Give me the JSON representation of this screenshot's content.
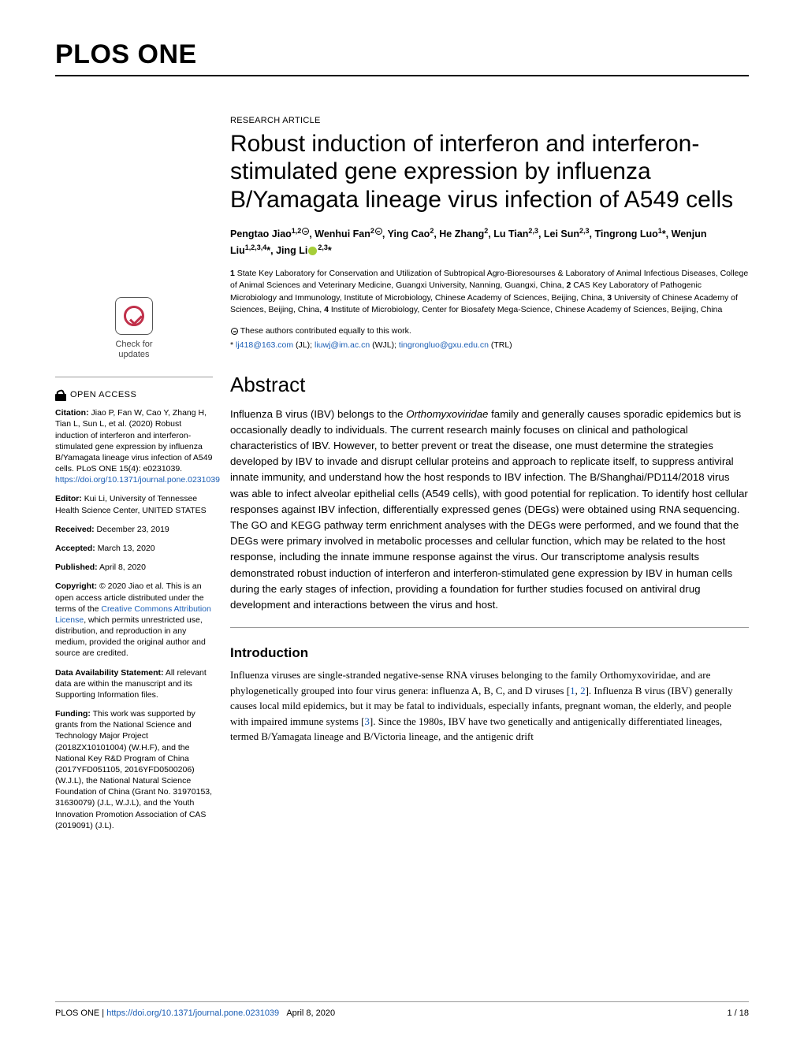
{
  "journal": "PLOS ONE",
  "article_type": "RESEARCH ARTICLE",
  "title": "Robust induction of interferon and interferon-stimulated gene expression by influenza B/Yamagata lineage virus infection of A549 cells",
  "authors_html": "Pengtao Jiao<sup>1,2<span class='equal-sym'></span></sup>, Wenhui Fan<sup>2<span class='equal-sym'></span></sup>, Ying Cao<sup>2</sup>, He Zhang<sup>2</sup>, Lu Tian<sup>2,3</sup>, Lei Sun<sup>2,3</sup>, Tingrong Luo<sup>1</sup>*, Wenjun Liu<sup>1,2,3,4</sup>*, Jing Li<span class='orcid-icon' data-name='orcid-icon' data-interactable='false'></span><sup>2,3</sup>*",
  "affiliations_html": "<b>1</b> State Key Laboratory for Conservation and Utilization of Subtropical Agro-Bioresourses & Laboratory of Animal Infectious Diseases, College of Animal Sciences and Veterinary Medicine, Guangxi University, Nanning, Guangxi, China, <b>2</b> CAS Key Laboratory of Pathogenic Microbiology and Immunology, Institute of Microbiology, Chinese Academy of Sciences, Beijing, China, <b>3</b> University of Chinese Academy of Sciences, Beijing, China, <b>4</b> Institute of Microbiology, Center for Biosafety Mega-Science, Chinese Academy of Sciences, Beijing, China",
  "equal_contrib": "These authors contributed equally to this work.",
  "correspondence_html": "* <span class='link'>lj418@163.com</span> (JL); <span class='link'>liuwj@im.ac.cn</span> (WJL); <span class='link'>tingrongluo@gxu.edu.cn</span> (TRL)",
  "abstract_heading": "Abstract",
  "abstract_html": "Influenza B virus (IBV) belongs to the <i>Orthomyxoviridae</i> family and generally causes sporadic epidemics but is occasionally deadly to individuals. The current research mainly focuses on clinical and pathological characteristics of IBV. However, to better prevent or treat the disease, one must determine the strategies developed by IBV to invade and disrupt cellular proteins and approach to replicate itself, to suppress antiviral innate immunity, and understand how the host responds to IBV infection. The B/Shanghai/PD114/2018 virus was able to infect alveolar epithelial cells (A549 cells), with good potential for replication. To identify host cellular responses against IBV infection, differentially expressed genes (DEGs) were obtained using RNA sequencing. The GO and KEGG pathway term enrichment analyses with the DEGs were performed, and we found that the DEGs were primary involved in metabolic processes and cellular function, which may be related to the host response, including the innate immune response against the virus. Our transcriptome analysis results demonstrated robust induction of interferon and interferon-stimulated gene expression by IBV in human cells during the early stages of infection, providing a foundation for further studies focused on antiviral drug development and interactions between the virus and host.",
  "introduction_heading": "Introduction",
  "introduction_html": "Influenza viruses are single-stranded negative-sense RNA viruses belonging to the family Orthomyxoviridae, and are phylogenetically grouped into four virus genera: influenza A, B, C, and D viruses [<span class='link'>1</span>, <span class='link'>2</span>]. Influenza B virus (IBV) generally causes local mild epidemics, but it may be fatal to individuals, especially infants, pregnant woman, the elderly, and people with impaired immune systems [<span class='link'>3</span>]. Since the 1980s, IBV have two genetically and antigenically differentiated lineages, termed B/Yamagata lineage and B/Victoria lineage, and the antigenic drift",
  "sidebar": {
    "check_for_updates": "Check for\nupdates",
    "open_access": "OPEN ACCESS",
    "citation_label": "Citation:",
    "citation_html": "Jiao P, Fan W, Cao Y, Zhang H, Tian L, Sun L, et al. (2020) Robust induction of interferon and interferon-stimulated gene expression by influenza B/Yamagata lineage virus infection of A549 cells. PLoS ONE 15(4): e0231039. <span class='link'>https://doi.org/10.1371/journal.pone.0231039</span>",
    "editor_label": "Editor:",
    "editor": "Kui Li, University of Tennessee Health Science Center, UNITED STATES",
    "received_label": "Received:",
    "received": "December 23, 2019",
    "accepted_label": "Accepted:",
    "accepted": "March 13, 2020",
    "published_label": "Published:",
    "published": "April 8, 2020",
    "copyright_label": "Copyright:",
    "copyright_html": "© 2020 Jiao et al. This is an open access article distributed under the terms of the <span class='link'>Creative Commons Attribution License</span>, which permits unrestricted use, distribution, and reproduction in any medium, provided the original author and source are credited.",
    "data_label": "Data Availability Statement:",
    "data": "All relevant data are within the manuscript and its Supporting Information files.",
    "funding_label": "Funding:",
    "funding": "This work was supported by grants from the National Science and Technology Major Project (2018ZX10101004) (W.H.F), and the National Key R&D Program of China (2017YFD051105, 2016YFD0500206) (W.J.L), the National Natural Science Foundation of China (Grant No. 31970153, 31630079) (J.L, W.J.L), and the Youth Innovation Promotion Association of CAS (2019091) (J.L)."
  },
  "footer": {
    "left_html": "PLOS ONE | <span class='link'>https://doi.org/10.1371/journal.pone.0231039</span>&nbsp;&nbsp;&nbsp;April 8, 2020",
    "right": "1 / 18"
  },
  "colors": {
    "link": "#1a5db4",
    "crossmark_ring": "#c0304a",
    "orcid": "#a6ce39",
    "rule": "#999999"
  },
  "typography": {
    "journal_header_pt": 34,
    "title_pt": 30,
    "abstract_heading_pt": 26,
    "section_heading_pt": 17,
    "body_pt": 13,
    "abstract_pt": 13.3,
    "authors_pt": 12.5,
    "affil_pt": 10.5,
    "sidebar_pt": 10.5,
    "footer_pt": 11
  }
}
